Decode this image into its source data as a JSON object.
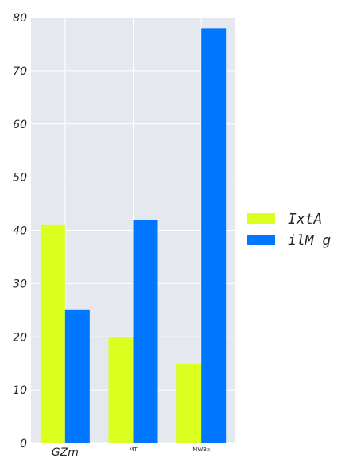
{
  "chart_data": {
    "type": "bar",
    "categories": [
      "GZm",
      "MT",
      "MWBx"
    ],
    "series": [
      {
        "name": "IxtA",
        "values": [
          41,
          20,
          15
        ],
        "color": "#dbff1f"
      },
      {
        "name": "ilM g",
        "values": [
          25,
          42,
          78
        ],
        "color": "#0077ff"
      }
    ],
    "title": "",
    "xlabel": "",
    "ylabel": "",
    "ylim": [
      0,
      80
    ],
    "yticks": [
      "0",
      "10",
      "20",
      "30",
      "40",
      "50",
      "60",
      "70",
      "80"
    ],
    "grid": true,
    "legend_position": "right",
    "plot_background": "#e6e8f0",
    "grid_color": "#ffffff"
  }
}
